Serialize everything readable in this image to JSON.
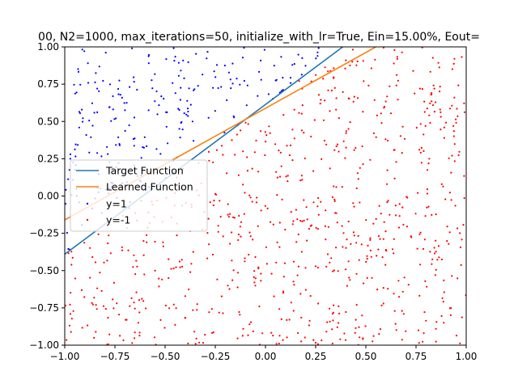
{
  "chart_data": {
    "type": "scatter",
    "title": "00, N2=1000, max_iterations=50, initialize_with_lr=True, Ein=15.00%, Eout=",
    "xlabel": "",
    "ylabel": "",
    "xlim": [
      -1.0,
      1.0
    ],
    "ylim": [
      -1.0,
      1.0
    ],
    "x_ticks": [
      "−1.00",
      "−0.75",
      "−0.50",
      "−0.25",
      "0.00",
      "0.25",
      "0.50",
      "0.75",
      "1.00"
    ],
    "y_ticks": [
      "−1.00",
      "−0.75",
      "−0.50",
      "−0.25",
      "0.00",
      "0.25",
      "0.50",
      "0.75",
      "1.00"
    ],
    "x_tick_values": [
      -1.0,
      -0.75,
      -0.5,
      -0.25,
      0.0,
      0.25,
      0.5,
      0.75,
      1.0
    ],
    "y_tick_values": [
      -1.0,
      -0.75,
      -0.5,
      -0.25,
      0.0,
      0.25,
      0.5,
      0.75,
      1.0
    ],
    "grid": false,
    "legend_position": "center-left",
    "lines": [
      {
        "name": "Target Function",
        "color": "#1f77b4",
        "x": [
          -1.0,
          0.385
        ],
        "y": [
          -0.39,
          1.0
        ]
      },
      {
        "name": "Learned Function",
        "color": "#ff7f0e",
        "x": [
          -1.0,
          0.55
        ],
        "y": [
          -0.16,
          1.0
        ]
      }
    ],
    "scatter_series": [
      {
        "name": "y=1",
        "color": "#0000ff",
        "region": "above target function line",
        "approx_count": 260
      },
      {
        "name": "y=-1",
        "color": "#ff0000",
        "region": "below target function line",
        "approx_count": 740
      }
    ],
    "legend": [
      "Target Function",
      "Learned Function",
      "y=1",
      "y=-1"
    ]
  }
}
